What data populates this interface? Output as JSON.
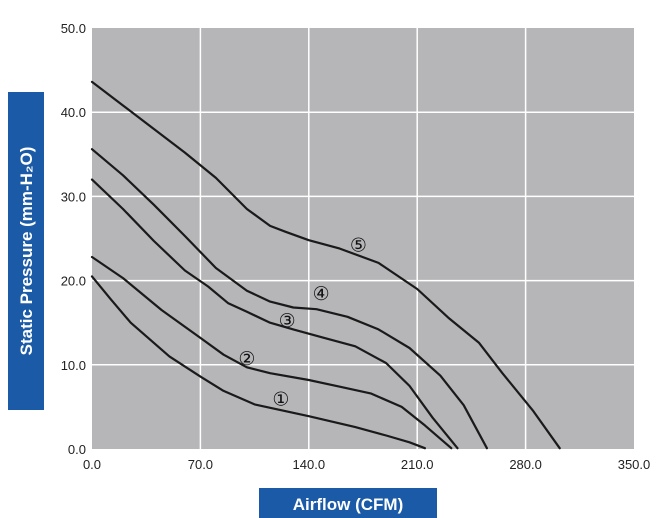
{
  "chart_data": {
    "type": "line",
    "xlabel": "Airflow (CFM)",
    "ylabel": "Static Pressure (mm-H₂O)",
    "xlim": [
      0,
      350
    ],
    "ylim": [
      0,
      50
    ],
    "x_ticks": [
      "0.0",
      "70.0",
      "140.0",
      "210.0",
      "280.0",
      "350.0"
    ],
    "y_ticks": [
      "0.0",
      "10.0",
      "20.0",
      "30.0",
      "40.0",
      "50.0"
    ],
    "grid": true,
    "colors": {
      "plot_background": "#b6b6b8",
      "grid": "#ffffff",
      "line": "#1a1a1a",
      "label_box": "#1b5aa6"
    },
    "series": [
      {
        "label": "①",
        "label_at": [
          122,
          6
        ],
        "points": [
          [
            0,
            20.5
          ],
          [
            12,
            17.8
          ],
          [
            25,
            15
          ],
          [
            50,
            11
          ],
          [
            70,
            8.6
          ],
          [
            85,
            6.9
          ],
          [
            105,
            5.3
          ],
          [
            140,
            3.9
          ],
          [
            170,
            2.6
          ],
          [
            190,
            1.6
          ],
          [
            205,
            0.8
          ],
          [
            215,
            0.1
          ]
        ]
      },
      {
        "label": "②",
        "label_at": [
          100,
          10.8
        ],
        "points": [
          [
            0,
            22.8
          ],
          [
            20,
            20.3
          ],
          [
            45,
            16.5
          ],
          [
            70,
            13.2
          ],
          [
            85,
            11.2
          ],
          [
            100,
            9.7
          ],
          [
            115,
            9
          ],
          [
            140,
            8.2
          ],
          [
            160,
            7.4
          ],
          [
            180,
            6.6
          ],
          [
            200,
            5
          ],
          [
            215,
            2.8
          ],
          [
            232,
            0.1
          ]
        ]
      },
      {
        "label": "③",
        "label_at": [
          126,
          15.3
        ],
        "points": [
          [
            0,
            32
          ],
          [
            20,
            28.5
          ],
          [
            40,
            24.7
          ],
          [
            60,
            21.2
          ],
          [
            75,
            19.3
          ],
          [
            88,
            17.3
          ],
          [
            100,
            16.3
          ],
          [
            115,
            15
          ],
          [
            130,
            14.2
          ],
          [
            150,
            13.2
          ],
          [
            170,
            12.2
          ],
          [
            190,
            10.2
          ],
          [
            205,
            7.5
          ],
          [
            220,
            3.7
          ],
          [
            236,
            0.1
          ]
        ]
      },
      {
        "label": "④",
        "label_at": [
          148,
          18.5
        ],
        "points": [
          [
            0,
            35.6
          ],
          [
            20,
            32.5
          ],
          [
            40,
            29
          ],
          [
            60,
            25.3
          ],
          [
            80,
            21.5
          ],
          [
            100,
            18.8
          ],
          [
            115,
            17.5
          ],
          [
            130,
            16.8
          ],
          [
            145,
            16.6
          ],
          [
            165,
            15.7
          ],
          [
            185,
            14.2
          ],
          [
            205,
            12
          ],
          [
            225,
            8.7
          ],
          [
            240,
            5.2
          ],
          [
            255,
            0.1
          ]
        ]
      },
      {
        "label": "⑤",
        "label_at": [
          172,
          24.3
        ],
        "points": [
          [
            0,
            43.6
          ],
          [
            20,
            40.8
          ],
          [
            40,
            38
          ],
          [
            60,
            35.2
          ],
          [
            80,
            32.2
          ],
          [
            100,
            28.5
          ],
          [
            115,
            26.5
          ],
          [
            125,
            25.8
          ],
          [
            140,
            24.8
          ],
          [
            160,
            23.8
          ],
          [
            185,
            22.1
          ],
          [
            210,
            19
          ],
          [
            230,
            15.6
          ],
          [
            250,
            12.6
          ],
          [
            265,
            9
          ],
          [
            285,
            4.5
          ],
          [
            302,
            0.1
          ]
        ]
      }
    ]
  }
}
